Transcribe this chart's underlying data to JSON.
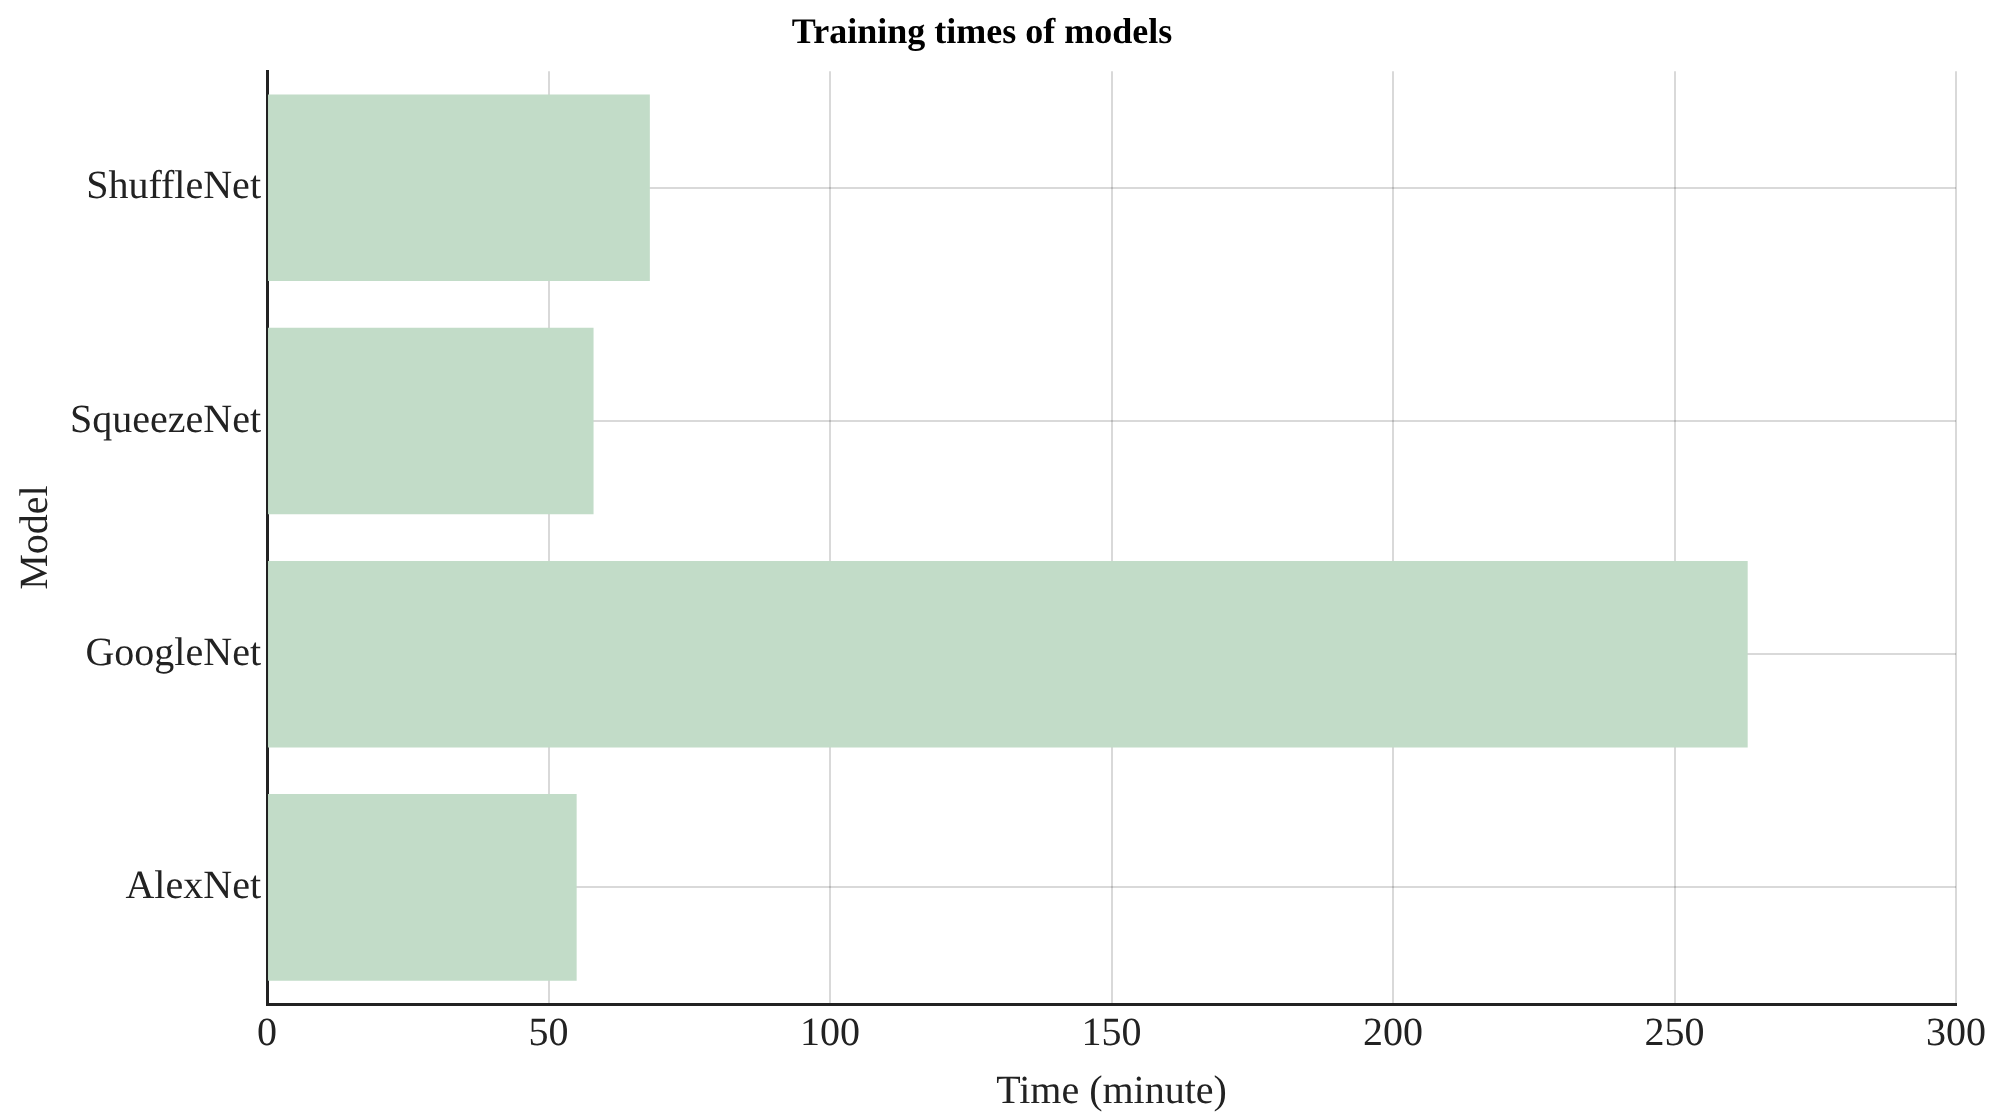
{
  "chart_data": {
    "type": "bar",
    "orientation": "horizontal",
    "title": "Training times of models",
    "xlabel": "Time (minute)",
    "ylabel": "Model",
    "categories": [
      "ShuffleNet",
      "SqueezeNet",
      "GoogleNet",
      "AlexNet"
    ],
    "values": [
      68,
      58,
      263,
      55
    ],
    "color": "#c2dcc8",
    "xlim": [
      0,
      300
    ],
    "xticks": [
      0,
      50,
      100,
      150,
      200,
      250,
      300
    ],
    "grid": true
  }
}
